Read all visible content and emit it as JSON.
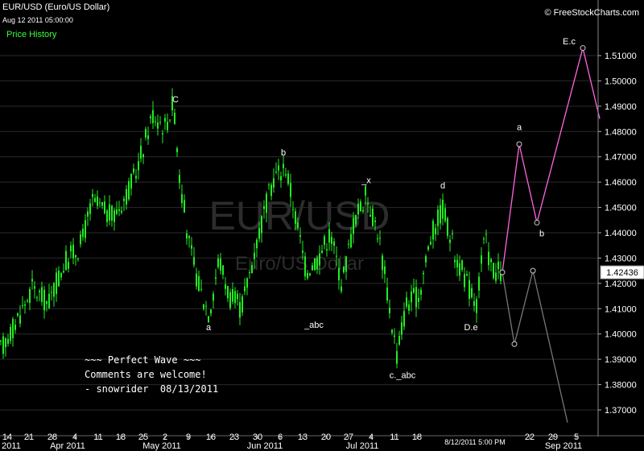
{
  "header": {
    "symbol": "EUR/USD (Euro/US Dollar)",
    "datetime": "Aug 12 2011 05:00:00",
    "tab": "Price History",
    "brand": "© FreeStockCharts.com"
  },
  "watermark": {
    "main": "EUR/USD",
    "sub": "Euro/US Dollar"
  },
  "note_lines": [
    "~~~ Perfect Wave ~~~",
    "Comments are welcome!",
    "- snowrider  08/13/2011"
  ],
  "chart_data": {
    "type": "candlestick",
    "title": "EUR/USD (Euro/US Dollar)",
    "ylim": [
      1.365,
      1.518
    ],
    "y_ticks": [
      "1.37000",
      "1.38000",
      "1.39000",
      "1.40000",
      "1.41000",
      "1.42000",
      "1.43000",
      "1.44000",
      "1.45000",
      "1.46000",
      "1.47000",
      "1.48000",
      "1.49000",
      "1.50000",
      "1.51000"
    ],
    "last_price": "1.42436",
    "x_tick_labels": [
      "14",
      "21",
      "28",
      "4",
      "11",
      "18",
      "25",
      "2",
      "9",
      "16",
      "23",
      "30",
      "6",
      "13",
      "20",
      "27",
      "4",
      "11",
      "18",
      "22",
      "29",
      "5"
    ],
    "x_month_labels": [
      "2011",
      "Apr 2011",
      "May 2011",
      "Jun 2011",
      "Jul 2011",
      "Sep 2011"
    ],
    "cursor_time_label": "8/12/2011 5:00 PM",
    "anchors": [
      {
        "x": 0,
        "price": 1.393
      },
      {
        "x": 20,
        "price": 1.405
      },
      {
        "x": 40,
        "price": 1.418
      },
      {
        "x": 60,
        "price": 1.412
      },
      {
        "x": 80,
        "price": 1.428
      },
      {
        "x": 100,
        "price": 1.435
      },
      {
        "x": 115,
        "price": 1.452
      },
      {
        "x": 140,
        "price": 1.446
      },
      {
        "x": 165,
        "price": 1.46
      },
      {
        "x": 190,
        "price": 1.487
      },
      {
        "x": 205,
        "price": 1.482
      },
      {
        "x": 216,
        "price": 1.492
      },
      {
        "x": 222,
        "price": 1.465
      },
      {
        "x": 235,
        "price": 1.435
      },
      {
        "x": 248,
        "price": 1.418
      },
      {
        "x": 260,
        "price": 1.408
      },
      {
        "x": 272,
        "price": 1.43
      },
      {
        "x": 285,
        "price": 1.415
      },
      {
        "x": 300,
        "price": 1.41
      },
      {
        "x": 320,
        "price": 1.438
      },
      {
        "x": 340,
        "price": 1.462
      },
      {
        "x": 355,
        "price": 1.466
      },
      {
        "x": 368,
        "price": 1.445
      },
      {
        "x": 380,
        "price": 1.425
      },
      {
        "x": 395,
        "price": 1.43
      },
      {
        "x": 410,
        "price": 1.44
      },
      {
        "x": 425,
        "price": 1.42
      },
      {
        "x": 440,
        "price": 1.445
      },
      {
        "x": 455,
        "price": 1.455
      },
      {
        "x": 470,
        "price": 1.44
      },
      {
        "x": 485,
        "price": 1.408
      },
      {
        "x": 493,
        "price": 1.392
      },
      {
        "x": 505,
        "price": 1.412
      },
      {
        "x": 520,
        "price": 1.415
      },
      {
        "x": 535,
        "price": 1.438
      },
      {
        "x": 550,
        "price": 1.45
      },
      {
        "x": 565,
        "price": 1.432
      },
      {
        "x": 580,
        "price": 1.42
      },
      {
        "x": 592,
        "price": 1.412
      },
      {
        "x": 602,
        "price": 1.438
      },
      {
        "x": 612,
        "price": 1.425
      },
      {
        "x": 622,
        "price": 1.424
      }
    ],
    "wave_labels": [
      {
        "text": "C",
        "x": 218,
        "price": 1.4915
      },
      {
        "text": "b",
        "x": 352,
        "price": 1.4705
      },
      {
        "text": "_x",
        "x": 455,
        "price": 1.4595
      },
      {
        "text": "d",
        "x": 550,
        "price": 1.4575
      },
      {
        "text": "a",
        "x": 259,
        "price": 1.4015
      },
      {
        "text": "_abc",
        "x": 390,
        "price": 1.4025
      },
      {
        "text": "D.e",
        "x": 585,
        "price": 1.4015
      },
      {
        "text": "c._abc",
        "x": 500,
        "price": 1.3825
      }
    ],
    "pink_projection": [
      {
        "x": 624,
        "price": 1.42436
      },
      {
        "x": 645,
        "price": 1.475
      },
      {
        "x": 667,
        "price": 1.444
      },
      {
        "x": 724,
        "price": 1.513
      },
      {
        "x": 745,
        "price": 1.485
      }
    ],
    "pink_labels": [
      {
        "text": "a",
        "x": 645,
        "price": 1.4805
      },
      {
        "text": "b",
        "x": 673,
        "price": 1.4385
      },
      {
        "text": "E.c",
        "x": 707,
        "price": 1.5145
      }
    ],
    "gray_projection": [
      {
        "x": 624,
        "price": 1.42436
      },
      {
        "x": 639,
        "price": 1.396
      },
      {
        "x": 662,
        "price": 1.425
      },
      {
        "x": 705,
        "price": 1.365
      }
    ],
    "colors": {
      "background": "#000000",
      "candle": "#22ee22",
      "pink": "#ff66dd",
      "gray": "#777777",
      "grid": "#2a2a2a",
      "watermark": "#2c2c2c"
    }
  }
}
